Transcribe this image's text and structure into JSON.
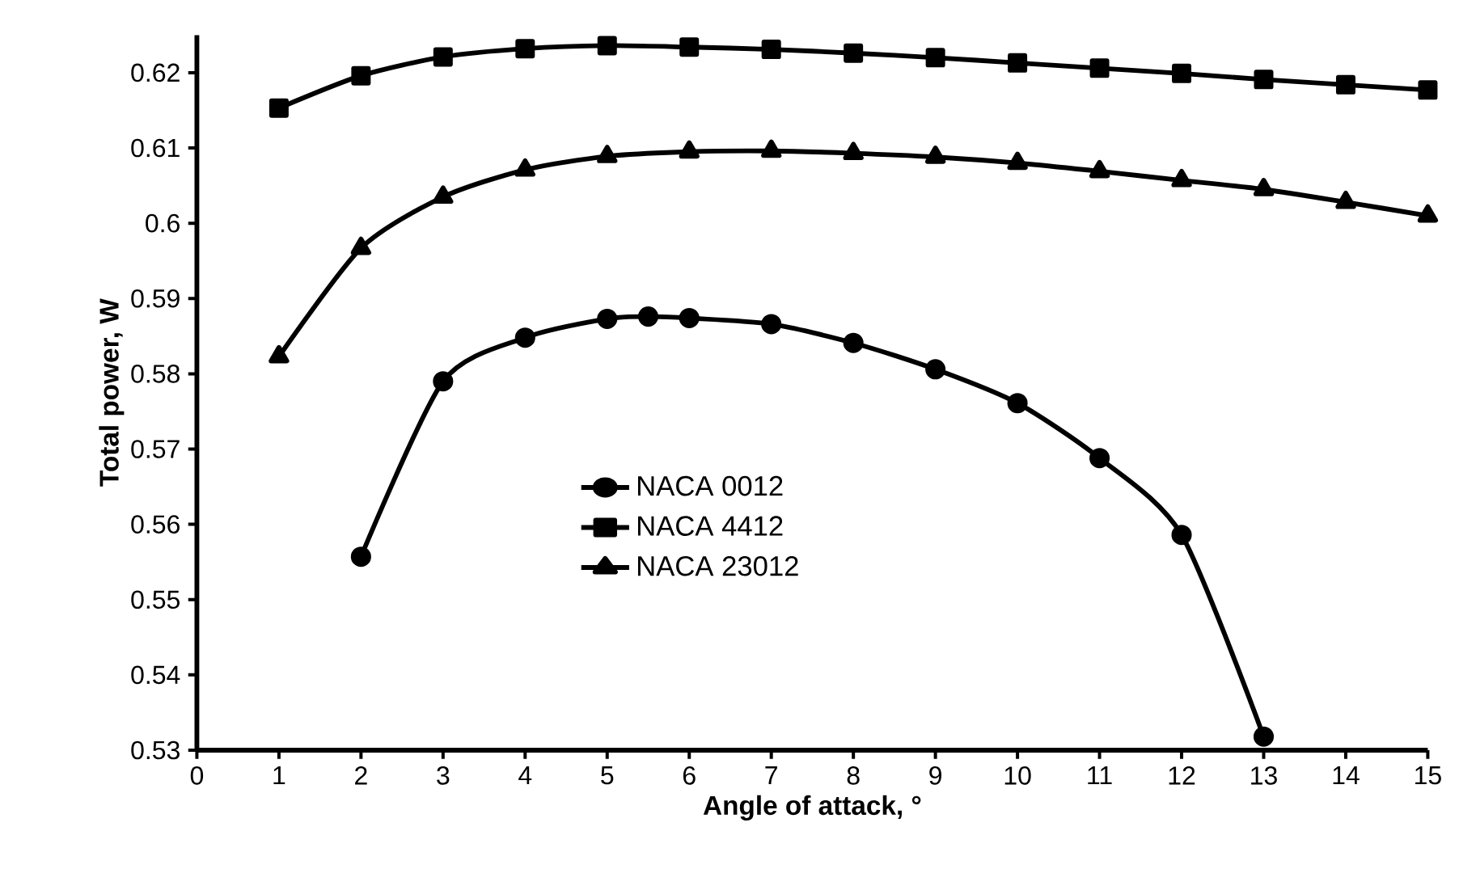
{
  "chart_data": {
    "type": "line",
    "xlabel": "Angle of attack, °",
    "ylabel": "Total power, W",
    "x": [
      1,
      2,
      3,
      4,
      5,
      6,
      7,
      8,
      9,
      10,
      11,
      12,
      13,
      14,
      15
    ],
    "series": [
      {
        "name": "NACA 0012",
        "color": "#000000",
        "marker": "circle",
        "x": [
          2,
          3,
          4,
          5,
          5.5,
          6,
          7,
          8,
          9,
          10,
          11,
          12,
          13
        ],
        "values": [
          0.5557,
          0.579,
          0.5848,
          0.5873,
          0.5876,
          0.5874,
          0.5866,
          0.5841,
          0.5806,
          0.5761,
          0.5688,
          0.5586,
          0.5318
        ]
      },
      {
        "name": "NACA 4412",
        "color": "#000000",
        "marker": "square",
        "values": [
          0.6153,
          0.6196,
          0.6221,
          0.6232,
          0.6236,
          0.6234,
          0.6231,
          0.6226,
          0.622,
          0.6213,
          0.6206,
          0.6199,
          0.6191,
          0.6184,
          0.6177
        ]
      },
      {
        "name": "NACA 23012",
        "color": "#000000",
        "marker": "triangle",
        "values": [
          0.5823,
          0.5967,
          0.6035,
          0.6071,
          0.6089,
          0.6095,
          0.6096,
          0.6093,
          0.6088,
          0.608,
          0.6069,
          0.6057,
          0.6045,
          0.6028,
          0.601
        ]
      }
    ],
    "xlim": [
      0,
      15
    ],
    "xticks": [
      0,
      1,
      2,
      3,
      4,
      5,
      6,
      7,
      8,
      9,
      10,
      11,
      12,
      13,
      14,
      15
    ],
    "ylim": [
      0.53,
      0.625
    ],
    "yticks": [
      0.53,
      0.54,
      0.55,
      0.56,
      0.57,
      0.58,
      0.59,
      0.6,
      0.61,
      0.62
    ],
    "grid": false,
    "legend": "bottom",
    "line_style": "solid"
  }
}
